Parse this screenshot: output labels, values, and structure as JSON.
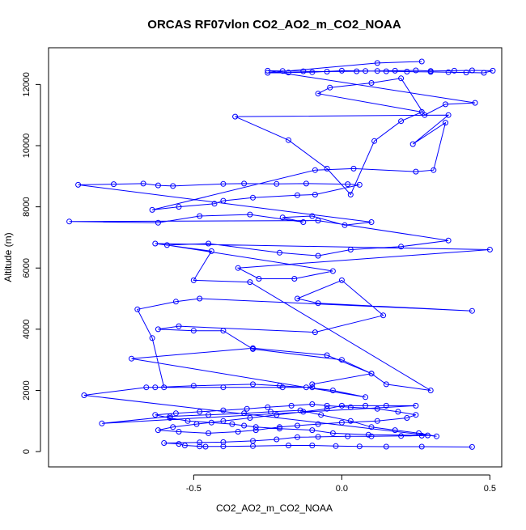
{
  "chart_data": {
    "type": "line",
    "title": "ORCAS RF07vlon CO2_AO2_m_CO2_NOAA",
    "xlabel": "CO2_AO2_m_CO2_NOAA",
    "ylabel": "Altitude (m)",
    "xlim": [
      -0.99,
      0.54
    ],
    "ylim": [
      -500,
      13200
    ],
    "xticks": [
      -0.5,
      0.0,
      0.5
    ],
    "xtick_labels": [
      "-0.5",
      "0.0",
      "0.5"
    ],
    "yticks": [
      0,
      2000,
      4000,
      6000,
      8000,
      10000,
      12000
    ],
    "ytick_labels": [
      "0",
      "2000",
      "4000",
      "6000",
      "8000",
      "10000",
      "12000"
    ],
    "grid": false,
    "legend": "none",
    "marker": "open-circle",
    "color": "#0000ff",
    "series": [
      {
        "x": [
          0.44,
          0.27,
          0.15,
          0.06,
          -0.02,
          -0.1,
          -0.18,
          -0.3,
          -0.4,
          -0.48,
          -0.46,
          -0.53,
          -0.55,
          -0.6,
          -0.48,
          -0.4,
          -0.3,
          -0.22,
          -0.15,
          -0.08,
          0.02,
          0.1,
          0.2,
          0.27,
          0.29,
          0.09,
          -0.03,
          -0.1,
          -0.21,
          -0.29,
          -0.33,
          -0.37,
          -0.44,
          -0.52,
          -0.58,
          -0.63,
          -0.56,
          -0.48,
          -0.4,
          -0.32,
          -0.25,
          -0.17,
          -0.1,
          -0.05,
          0.03,
          0.12,
          0.19,
          0.25,
          0.22,
          0.12,
          0.0,
          -0.08,
          -0.15,
          -0.21,
          -0.29,
          -0.35,
          -0.45,
          -0.55,
          -0.62,
          -0.57,
          -0.49,
          -0.4,
          -0.31,
          -0.22,
          -0.13,
          -0.05,
          0.0,
          0.08,
          0.15,
          0.25,
          -0.81,
          -0.58,
          -0.45,
          -0.33,
          -0.24,
          -0.14,
          -0.07,
          0.03,
          0.1,
          0.18,
          0.26,
          0.32,
          -0.87,
          -0.66,
          -0.63,
          -0.5,
          -0.3,
          -0.21,
          -0.12,
          -0.03,
          0.08,
          -0.71,
          -0.3,
          -0.05,
          0.1,
          -0.1,
          -0.1,
          -0.2,
          -0.4,
          -0.6,
          -0.64,
          -0.69,
          -0.56,
          -0.48,
          0.44,
          -0.08,
          -0.15,
          0.0,
          0.14,
          -0.09,
          -0.55,
          -0.62,
          -0.5,
          -0.4,
          -0.3,
          0.0,
          0.1,
          0.15,
          0.3,
          -0.31,
          -0.5,
          -0.44,
          -0.63,
          0.5,
          -0.35,
          -0.28,
          -0.16,
          -0.03,
          -0.59,
          -0.45,
          -0.21,
          -0.08,
          0.03,
          0.2,
          0.36,
          -0.08,
          -0.92,
          -0.62,
          -0.48,
          -0.31,
          -0.13,
          -0.2,
          -0.1,
          0.01,
          0.1,
          -0.89,
          -0.77,
          -0.67,
          -0.62,
          -0.57,
          -0.4,
          -0.33,
          -0.22,
          -0.12,
          0.02,
          0.06,
          -0.09,
          -0.15,
          -0.3,
          -0.4,
          -0.43,
          -0.55,
          -0.64,
          -0.09,
          0.04,
          0.25,
          0.31,
          0.35,
          0.24,
          0.36,
          -0.36,
          -0.18,
          -0.05,
          0.03,
          0.11,
          0.2,
          0.27,
          -0.08,
          -0.04,
          0.1,
          0.2,
          0.28,
          0.35,
          0.45,
          -0.25,
          -0.2,
          -0.13,
          -0.05,
          0.05,
          0.12,
          0.18,
          0.25,
          0.3,
          0.38,
          0.44,
          0.51,
          0.48,
          0.42,
          0.36,
          0.3,
          0.22,
          0.15,
          0.08,
          0.0,
          -0.1,
          -0.18,
          -0.25,
          0.12,
          0.27
        ],
        "y": [
          150,
          160,
          160,
          170,
          180,
          200,
          200,
          180,
          170,
          170,
          160,
          200,
          250,
          280,
          300,
          310,
          350,
          400,
          470,
          480,
          500,
          500,
          510,
          520,
          530,
          550,
          600,
          700,
          750,
          800,
          850,
          900,
          950,
          1000,
          1100,
          1200,
          1250,
          1300,
          1350,
          1400,
          1450,
          1500,
          1550,
          1500,
          1450,
          1400,
          1300,
          1200,
          1100,
          1000,
          950,
          900,
          850,
          800,
          700,
          650,
          600,
          650,
          700,
          800,
          900,
          1000,
          1100,
          1200,
          1300,
          1400,
          1500,
          1500,
          1500,
          1500,
          920,
          1150,
          1200,
          1250,
          1300,
          1350,
          1200,
          1000,
          800,
          700,
          600,
          500,
          1840,
          2100,
          2100,
          2150,
          2200,
          2150,
          2100,
          2000,
          1780,
          3040,
          3380,
          3150,
          2550,
          2200,
          2100,
          2100,
          2100,
          2100,
          3710,
          4650,
          4900,
          5000,
          4600,
          4850,
          5000,
          5600,
          4450,
          3900,
          4100,
          4000,
          3950,
          3950,
          3350,
          3000,
          2550,
          2200,
          2000,
          5540,
          5600,
          6550,
          6800,
          6600,
          6000,
          5650,
          5650,
          5900,
          6750,
          6800,
          6500,
          6400,
          6600,
          6700,
          6900,
          7550,
          7520,
          7480,
          7700,
          7750,
          7500,
          7650,
          7700,
          7400,
          7500,
          8720,
          8740,
          8760,
          8700,
          8680,
          8750,
          8760,
          8750,
          8760,
          8740,
          8720,
          8400,
          8380,
          8300,
          8200,
          8100,
          8000,
          7900,
          9200,
          9250,
          9150,
          9200,
          10750,
          10050,
          11000,
          10950,
          10180,
          9250,
          8400,
          10150,
          10800,
          11100,
          11700,
          11900,
          12050,
          12200,
          11000,
          11350,
          11400,
          12450,
          12440,
          12430,
          12420,
          12430,
          12440,
          12450,
          12460,
          12440,
          12450,
          12460,
          12450,
          12380,
          12390,
          12400,
          12410,
          12420,
          12430,
          12440,
          12450,
          12400,
          12390,
          12380,
          12700,
          12750
        ]
      }
    ]
  }
}
